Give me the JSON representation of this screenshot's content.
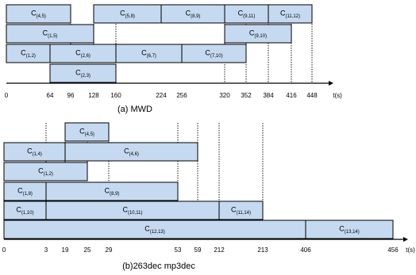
{
  "panel_a": {
    "caption": "(a) MWD",
    "axis_label": "t(s)",
    "ticks": [
      "0",
      "64",
      "96",
      "128",
      "160",
      "224",
      "256",
      "320",
      "352",
      "384",
      "416",
      "448"
    ],
    "tasks": [
      {
        "label": "C",
        "sub": "(4,5)",
        "row": 4,
        "start": "0",
        "end": "96"
      },
      {
        "label": "C",
        "sub": "(5,8)",
        "row": 4,
        "start": "128",
        "end": "224"
      },
      {
        "label": "C",
        "sub": "(8,9)",
        "row": 4,
        "start": "224",
        "end": "320"
      },
      {
        "label": "C",
        "sub": "(9,11)",
        "row": 4,
        "start": "320",
        "end": "384"
      },
      {
        "label": "C",
        "sub": "(11,12)",
        "row": 4,
        "start": "384",
        "end": "448"
      },
      {
        "label": "C",
        "sub": "(1,5)",
        "row": 3,
        "start": "0",
        "end": "128"
      },
      {
        "label": "C",
        "sub": "(9,10)",
        "row": 3,
        "start": "320",
        "end": "416"
      },
      {
        "label": "C",
        "sub": "(1,2)",
        "row": 2,
        "start": "0",
        "end": "64"
      },
      {
        "label": "C",
        "sub": "(2,6)",
        "row": 2,
        "start": "64",
        "end": "160"
      },
      {
        "label": "C",
        "sub": "(6,7)",
        "row": 2,
        "start": "160",
        "end": "256"
      },
      {
        "label": "C",
        "sub": "(7,10)",
        "row": 2,
        "start": "256",
        "end": "352"
      },
      {
        "label": "C",
        "sub": "(2,3)",
        "row": 1,
        "start": "64",
        "end": "160"
      }
    ],
    "dotted_at": [
      "96",
      "128",
      "160",
      "320",
      "352",
      "384",
      "416",
      "448"
    ]
  },
  "panel_b": {
    "caption": "(b)263dec mp3dec",
    "axis_label": "t(s)",
    "ticks": [
      "0",
      "3",
      "19",
      "25",
      "29",
      "53",
      "59",
      "212",
      "213",
      "406",
      "456"
    ],
    "tasks": [
      {
        "label": "C",
        "sub": "(4,5)",
        "row": 6,
        "start": "19",
        "end": "29"
      },
      {
        "label": "C",
        "sub": "(1,4)",
        "row": 5,
        "start": "0",
        "end": "19"
      },
      {
        "label": "C",
        "sub": "(4,6)",
        "row": 5,
        "start": "19",
        "end": "59"
      },
      {
        "label": "C",
        "sub": "(1,2)",
        "row": 4,
        "start": "0",
        "end": "25"
      },
      {
        "label": "C",
        "sub": "(1,8)",
        "row": 3,
        "start": "0",
        "end": "3"
      },
      {
        "label": "C",
        "sub": "(8,9)",
        "row": 3,
        "start": "3",
        "end": "53"
      },
      {
        "label": "C",
        "sub": "(1,10)",
        "row": 2,
        "start": "0",
        "end": "3"
      },
      {
        "label": "C",
        "sub": "(10,11)",
        "row": 2,
        "start": "3",
        "end": "212"
      },
      {
        "label": "C",
        "sub": "(11,14)",
        "row": 2,
        "start": "212",
        "end": "213"
      },
      {
        "label": "C",
        "sub": "(12,13)",
        "row": 1,
        "start": "0",
        "end": "406"
      },
      {
        "label": "C",
        "sub": "(13,14)",
        "row": 1,
        "start": "406",
        "end": "456"
      }
    ],
    "dotted_at": [
      "3",
      "19",
      "25",
      "29",
      "53",
      "59",
      "212",
      "213"
    ]
  },
  "colors": {
    "bar_fill": "#c5d9f0",
    "bar_stroke": "#000000",
    "axis": "#000000"
  }
}
